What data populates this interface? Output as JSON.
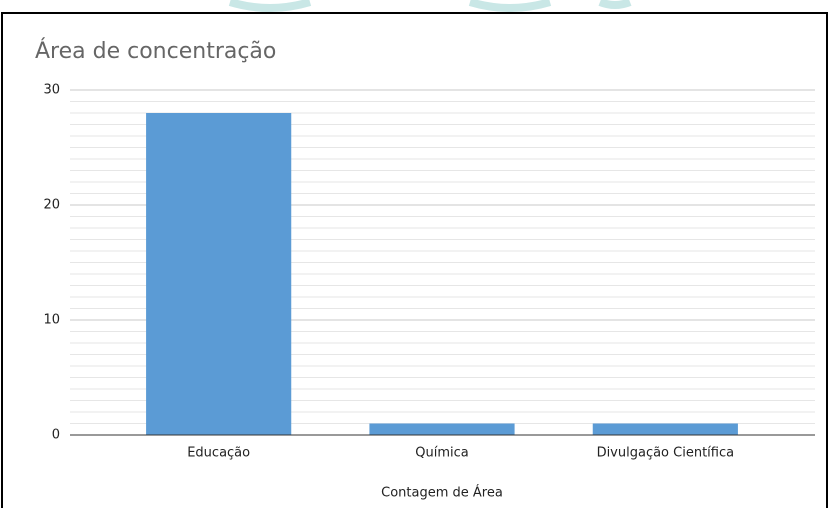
{
  "chart_data": {
    "type": "bar",
    "title": "Área de concentração",
    "categories": [
      "Educação",
      "Química",
      "Divulgação Científica"
    ],
    "values": [
      28,
      1,
      1
    ],
    "color": "#5b9bd5",
    "ylim": [
      0,
      30
    ],
    "yticks": [
      0,
      10,
      20,
      30
    ],
    "grid": true,
    "xlabel": "Contagem de Área"
  }
}
